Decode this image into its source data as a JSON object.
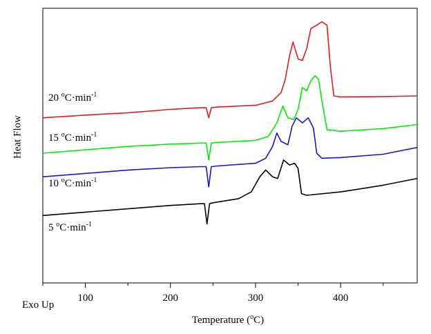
{
  "chart_data": {
    "type": "line",
    "xlabel": "Temperature (°C)",
    "ylabel": "Heat Flow",
    "corner_label": "Exo Up",
    "x_ticks": [
      100,
      200,
      300,
      400
    ],
    "xlim": [
      50,
      490
    ],
    "y_ticks_shown": false,
    "grid": false,
    "series": [
      {
        "name": "20 °C·min⁻¹",
        "label_parts": {
          "pre": "20 ",
          "sup1": "o",
          "mid": "C·min",
          "sup2": "-1"
        },
        "color": "#e8191c",
        "x": [
          50,
          100,
          150,
          200,
          235,
          242,
          245,
          248,
          255,
          300,
          320,
          330,
          335,
          340,
          344,
          350,
          355,
          360,
          365,
          372,
          378,
          384,
          388,
          392,
          400,
          450,
          490
        ],
        "y": [
          2.3,
          2.38,
          2.45,
          2.55,
          2.6,
          2.6,
          2.3,
          2.6,
          2.62,
          2.67,
          2.8,
          3.05,
          3.45,
          4.15,
          4.55,
          4.05,
          4.0,
          4.35,
          4.95,
          5.05,
          5.15,
          5.05,
          3.8,
          2.95,
          2.92,
          2.93,
          2.95
        ]
      },
      {
        "name": "15 °C·min⁻¹",
        "label_parts": {
          "pre": "15 ",
          "sup1": "o",
          "mid": "C·min",
          "sup2": "-1"
        },
        "color": "#00ee00",
        "x": [
          50,
          100,
          150,
          200,
          235,
          242,
          245,
          248,
          255,
          300,
          315,
          325,
          332,
          338,
          345,
          350,
          355,
          360,
          365,
          370,
          374,
          378,
          384,
          400,
          450,
          490
        ],
        "y": [
          1.25,
          1.35,
          1.45,
          1.52,
          1.55,
          1.55,
          1.05,
          1.55,
          1.57,
          1.63,
          1.75,
          2.15,
          2.65,
          2.3,
          2.25,
          2.55,
          3.2,
          3.1,
          3.4,
          3.55,
          3.45,
          2.8,
          1.95,
          1.9,
          1.98,
          2.1
        ]
      },
      {
        "name": "10 °C·min⁻¹",
        "label_parts": {
          "pre": "10 ",
          "sup1": "o",
          "mid": "C·min",
          "sup2": "-1"
        },
        "color": "#1515d6",
        "x": [
          50,
          100,
          150,
          200,
          235,
          242,
          245,
          248,
          255,
          300,
          312,
          320,
          325,
          330,
          338,
          343,
          348,
          355,
          362,
          368,
          372,
          378,
          400,
          450,
          490
        ],
        "y": [
          0.55,
          0.65,
          0.75,
          0.82,
          0.85,
          0.85,
          0.25,
          0.85,
          0.87,
          0.95,
          1.1,
          1.45,
          1.85,
          1.6,
          1.5,
          2.05,
          2.3,
          2.15,
          2.3,
          2.0,
          1.25,
          1.1,
          1.12,
          1.22,
          1.42
        ]
      },
      {
        "name": "5 °C·min⁻¹",
        "label_parts": {
          "pre": "5 ",
          "sup1": "o",
          "mid": "C·min",
          "sup2": "-1"
        },
        "color": "#000000",
        "x": [
          50,
          100,
          150,
          200,
          235,
          240,
          243,
          246,
          250,
          280,
          295,
          305,
          312,
          320,
          326,
          333,
          340,
          346,
          350,
          354,
          360,
          400,
          450,
          490
        ],
        "y": [
          -0.6,
          -0.5,
          -0.4,
          -0.3,
          -0.25,
          -0.25,
          -0.85,
          -0.25,
          -0.22,
          -0.1,
          0.1,
          0.55,
          0.75,
          0.55,
          0.5,
          1.05,
          0.9,
          0.95,
          0.8,
          0.05,
          0.0,
          0.1,
          0.3,
          0.5
        ]
      }
    ]
  }
}
